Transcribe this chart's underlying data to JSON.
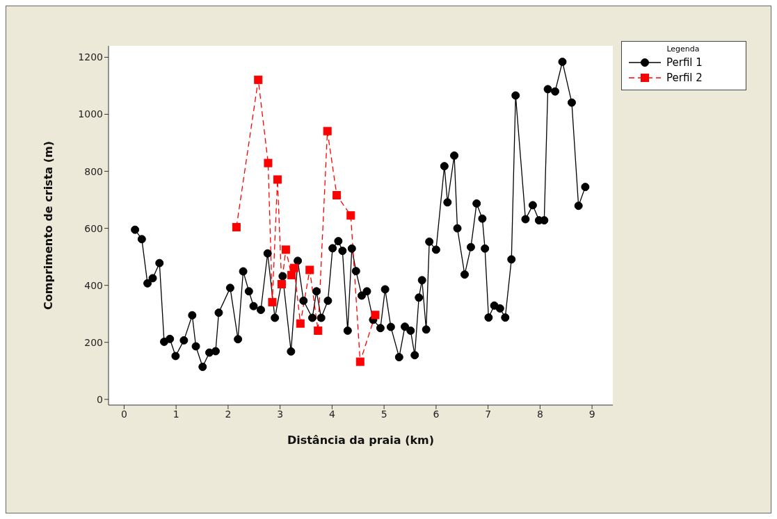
{
  "chart_data": {
    "type": "line",
    "xlabel": "Distância da praia (km)",
    "ylabel": "Comprimento de crista (m)",
    "legend_title": "Legenda",
    "legend": "top right",
    "grid": false,
    "xlim": [
      -0.3,
      9.4
    ],
    "xticks": [
      0,
      1,
      2,
      3,
      4,
      5,
      6,
      7,
      8,
      9
    ],
    "ylim": [
      -20,
      1240
    ],
    "yticks": [
      0,
      200,
      400,
      600,
      800,
      1000,
      1200
    ],
    "series": [
      {
        "name": "Perfil 1",
        "color": "#000000",
        "marker": "circle",
        "line_style": "solid",
        "x": [
          0.21,
          0.34,
          0.45,
          0.55,
          0.68,
          0.77,
          0.88,
          0.99,
          1.15,
          1.31,
          1.38,
          1.51,
          1.64,
          1.76,
          1.82,
          2.04,
          2.19,
          2.29,
          2.4,
          2.49,
          2.63,
          2.76,
          2.9,
          3.05,
          3.21,
          3.34,
          3.45,
          3.62,
          3.7,
          3.79,
          3.92,
          4.01,
          4.12,
          4.2,
          4.3,
          4.38,
          4.46,
          4.57,
          4.67,
          4.79,
          4.93,
          5.02,
          5.13,
          5.29,
          5.4,
          5.51,
          5.59,
          5.67,
          5.73,
          5.81,
          5.87,
          6.0,
          6.16,
          6.22,
          6.35,
          6.41,
          6.55,
          6.67,
          6.78,
          6.89,
          6.94,
          7.01,
          7.12,
          7.23,
          7.33,
          7.45,
          7.53,
          7.72,
          7.86,
          7.98,
          8.08,
          8.15,
          8.29,
          8.43,
          8.61,
          8.74,
          8.87
        ],
        "values": [
          595,
          562,
          407,
          425,
          478,
          202,
          212,
          152,
          207,
          295,
          186,
          114,
          164,
          169,
          304,
          391,
          211,
          449,
          379,
          327,
          314,
          512,
          286,
          432,
          168,
          486,
          346,
          286,
          379,
          286,
          346,
          530,
          555,
          521,
          241,
          529,
          450,
          364,
          379,
          279,
          250,
          386,
          254,
          148,
          255,
          241,
          155,
          357,
          418,
          245,
          553,
          525,
          818,
          691,
          855,
          600,
          438,
          534,
          687,
          634,
          529,
          287,
          329,
          319,
          287,
          491,
          1066,
          632,
          681,
          628,
          628,
          1088,
          1080,
          1184,
          1041,
          679,
          745
        ]
      },
      {
        "name": "Perfil 2",
        "color": "#ff0000",
        "marker": "square",
        "line_style": "dashed",
        "x": [
          2.16,
          2.58,
          2.77,
          2.85,
          2.95,
          3.03,
          3.11,
          3.22,
          3.27,
          3.39,
          3.57,
          3.73,
          3.91,
          4.09,
          4.36,
          4.54,
          4.83
        ],
        "values": [
          604,
          1121,
          829,
          341,
          771,
          404,
          525,
          436,
          461,
          266,
          454,
          241,
          941,
          716,
          645,
          132,
          296
        ]
      }
    ]
  }
}
